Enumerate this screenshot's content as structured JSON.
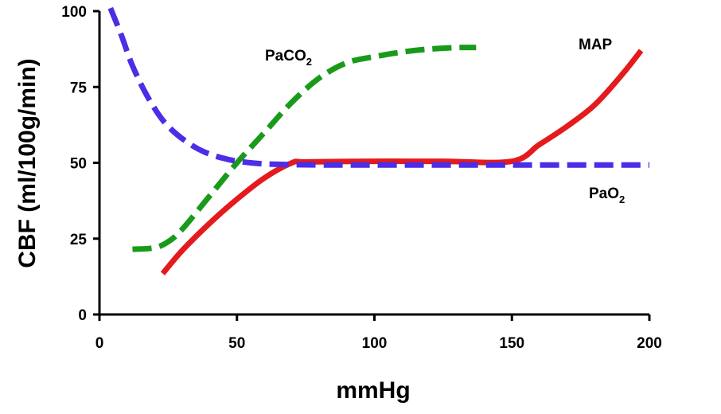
{
  "chart_data": {
    "type": "line",
    "title": "",
    "xlabel": "mmHg",
    "ylabel": "CBF (ml/100g/min)",
    "xlim": [
      0,
      200
    ],
    "ylim": [
      0,
      100
    ],
    "x_ticks": [
      "0",
      "50",
      "100",
      "150",
      "200"
    ],
    "y_ticks": [
      "0",
      "25",
      "50",
      "75",
      "100"
    ],
    "grid": false,
    "legend": "inline labels",
    "series": [
      {
        "name": "MAP",
        "label_base": "MAP",
        "label_sub": "",
        "color": "#e41a1c",
        "style": "solid",
        "x": [
          23,
          30,
          40,
          50,
          60,
          70,
          75,
          100,
          125,
          150,
          160,
          170,
          180,
          190,
          197
        ],
        "y": [
          13.5,
          21,
          30,
          38,
          45,
          50,
          50.3,
          50.5,
          50.5,
          50.5,
          56,
          62,
          69,
          79,
          87
        ]
      },
      {
        "name": "PaCO2",
        "label_base": "PaCO",
        "label_sub": "2",
        "color": "#1a9a1a",
        "style": "dashed",
        "x": [
          12,
          20,
          25,
          30,
          40,
          50,
          60,
          70,
          80,
          90,
          100,
          110,
          120,
          130,
          137
        ],
        "y": [
          21.5,
          22,
          24,
          28,
          39,
          50,
          60,
          70,
          78,
          83,
          85,
          86.5,
          87.5,
          88,
          88
        ]
      },
      {
        "name": "PaO2",
        "label_base": "PaO",
        "label_sub": "2",
        "color": "#4b2ee6",
        "style": "dashed",
        "x": [
          4,
          8,
          12,
          18,
          25,
          35,
          45,
          55,
          65,
          80,
          100,
          150,
          200
        ],
        "y": [
          101,
          92,
          82,
          71,
          62,
          55,
          51.5,
          50,
          49.5,
          49.3,
          49.3,
          49.3,
          49.3
        ]
      }
    ]
  }
}
